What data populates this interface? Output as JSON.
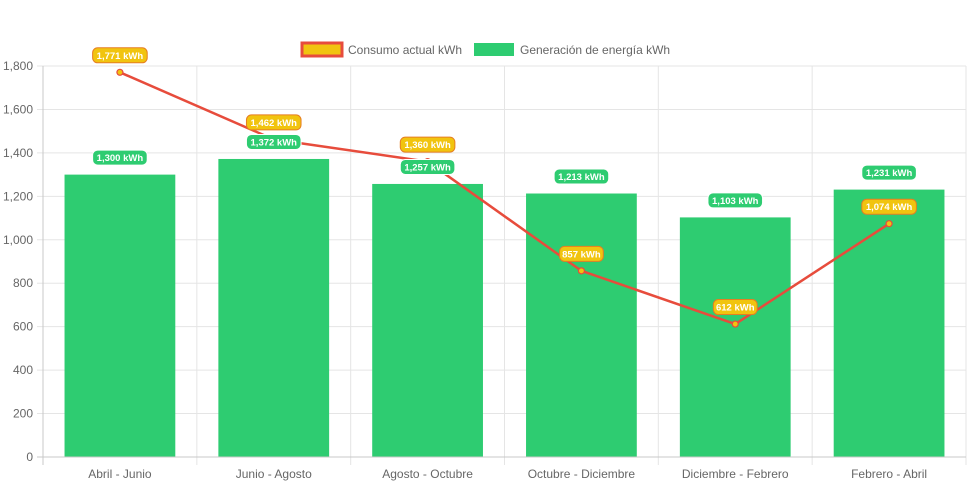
{
  "chart_data": {
    "type": "bar",
    "categories": [
      "Abril - Junio",
      "Junio - Agosto",
      "Agosto - Octubre",
      "Octubre - Diciembre",
      "Diciembre - Febrero",
      "Febrero - Abril"
    ],
    "series": [
      {
        "name": "Consumo actual kWh",
        "type": "line",
        "values": [
          1771,
          1462,
          1360,
          857,
          612,
          1074
        ],
        "labels": [
          "1,771 kWh",
          "1,462 kWh",
          "1,360 kWh",
          "857 kWh",
          "612 kWh",
          "1,074 kWh"
        ],
        "color": "#e74c3c",
        "fill": "#f1c40f"
      },
      {
        "name": "Generación de energía kWh",
        "type": "bar",
        "values": [
          1300,
          1372,
          1257,
          1213,
          1103,
          1231
        ],
        "labels": [
          "1,300 kWh",
          "1,372 kWh",
          "1,257 kWh",
          "1,213 kWh",
          "1,103 kWh",
          "1,231 kWh"
        ],
        "color": "#2ecc71"
      }
    ],
    "yticks": [
      "0",
      "200",
      "400",
      "600",
      "800",
      "1,000",
      "1,200",
      "1,400",
      "1,600",
      "1,800"
    ],
    "ylim": [
      0,
      1800
    ],
    "grid": true,
    "legend_position": "top"
  },
  "colors": {
    "grid": "#e5e5e5",
    "axis": "#c8c8c8",
    "text": "#666666"
  }
}
